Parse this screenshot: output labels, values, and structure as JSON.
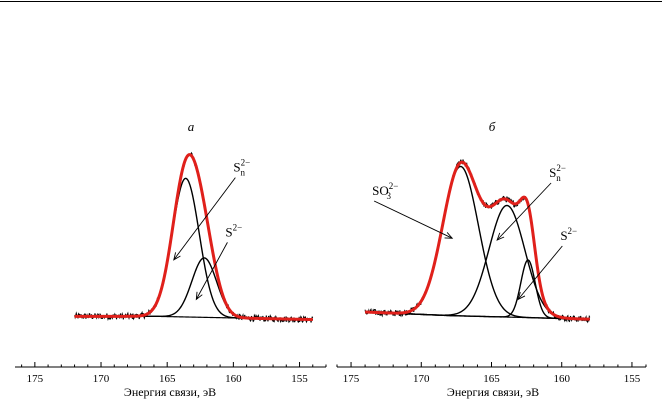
{
  "chart_data": [
    {
      "type": "line",
      "panel_label": "а",
      "xlabel": "Энергия связи, эВ",
      "xlim": [
        176.5,
        153
      ],
      "ylim": [
        0,
        1.0
      ],
      "x_ticks": [
        175,
        170,
        165,
        160,
        155
      ],
      "y_axis_shown": false,
      "data_range": [
        172,
        154
      ],
      "baseline": {
        "x": [
          172,
          166,
          154
        ],
        "y": [
          0.026,
          0.026,
          0.008
        ]
      },
      "components": [
        {
          "label": "S",
          "label_sub": "n",
          "label_sup": "2−",
          "center": 163.6,
          "fwhm": 2.4,
          "height": 0.77
        },
        {
          "label": "S",
          "label_sub": "",
          "label_sup": "2−",
          "center": 162.2,
          "fwhm": 2.2,
          "height": 0.33
        }
      ],
      "series": [
        {
          "kind": "experimental",
          "color": "#000000"
        },
        {
          "kind": "fit_envelope",
          "color": "#e0201b"
        }
      ],
      "annotations": [
        {
          "component": 0,
          "text_x": 160.0,
          "text_y": 0.83,
          "arrow_to_x": 164.5,
          "arrow_to_y": 0.34
        },
        {
          "component": 1,
          "text_x": 160.6,
          "text_y": 0.47,
          "arrow_to_x": 162.8,
          "arrow_to_y": 0.12
        }
      ]
    },
    {
      "type": "line",
      "panel_label": "б",
      "xlabel": "Энергия связи, эВ",
      "xlim": [
        176,
        154
      ],
      "ylim": [
        0,
        1.0
      ],
      "x_ticks": [
        175,
        170,
        165,
        160,
        155
      ],
      "y_axis_shown": false,
      "data_range": [
        174,
        158
      ],
      "baseline": {
        "x": [
          174,
          168,
          158
        ],
        "y": [
          0.05,
          0.03,
          0.01
        ]
      },
      "components": [
        {
          "label": "SO",
          "label_sub": "3",
          "label_sup": "2−",
          "center": 167.2,
          "fwhm": 3.0,
          "height": 0.83
        },
        {
          "label": "S",
          "label_sub": "n",
          "label_sup": "2−",
          "center": 163.9,
          "fwhm": 3.0,
          "height": 0.62
        },
        {
          "label": "S",
          "label_sub": "",
          "label_sup": "2−",
          "center": 162.4,
          "fwhm": 1.2,
          "height": 0.32
        }
      ],
      "series": [
        {
          "kind": "experimental",
          "color": "#000000"
        },
        {
          "kind": "fit_envelope",
          "color": "#e0201b"
        }
      ],
      "annotations": [
        {
          "component": 0,
          "text_x": 173.5,
          "text_y": 0.7,
          "arrow_to_x": 167.8,
          "arrow_to_y": 0.46
        },
        {
          "component": 1,
          "text_x": 160.9,
          "text_y": 0.8,
          "arrow_to_x": 164.6,
          "arrow_to_y": 0.45
        },
        {
          "component": 2,
          "text_x": 160.1,
          "text_y": 0.45,
          "arrow_to_x": 163.1,
          "arrow_to_y": 0.12
        }
      ]
    }
  ]
}
